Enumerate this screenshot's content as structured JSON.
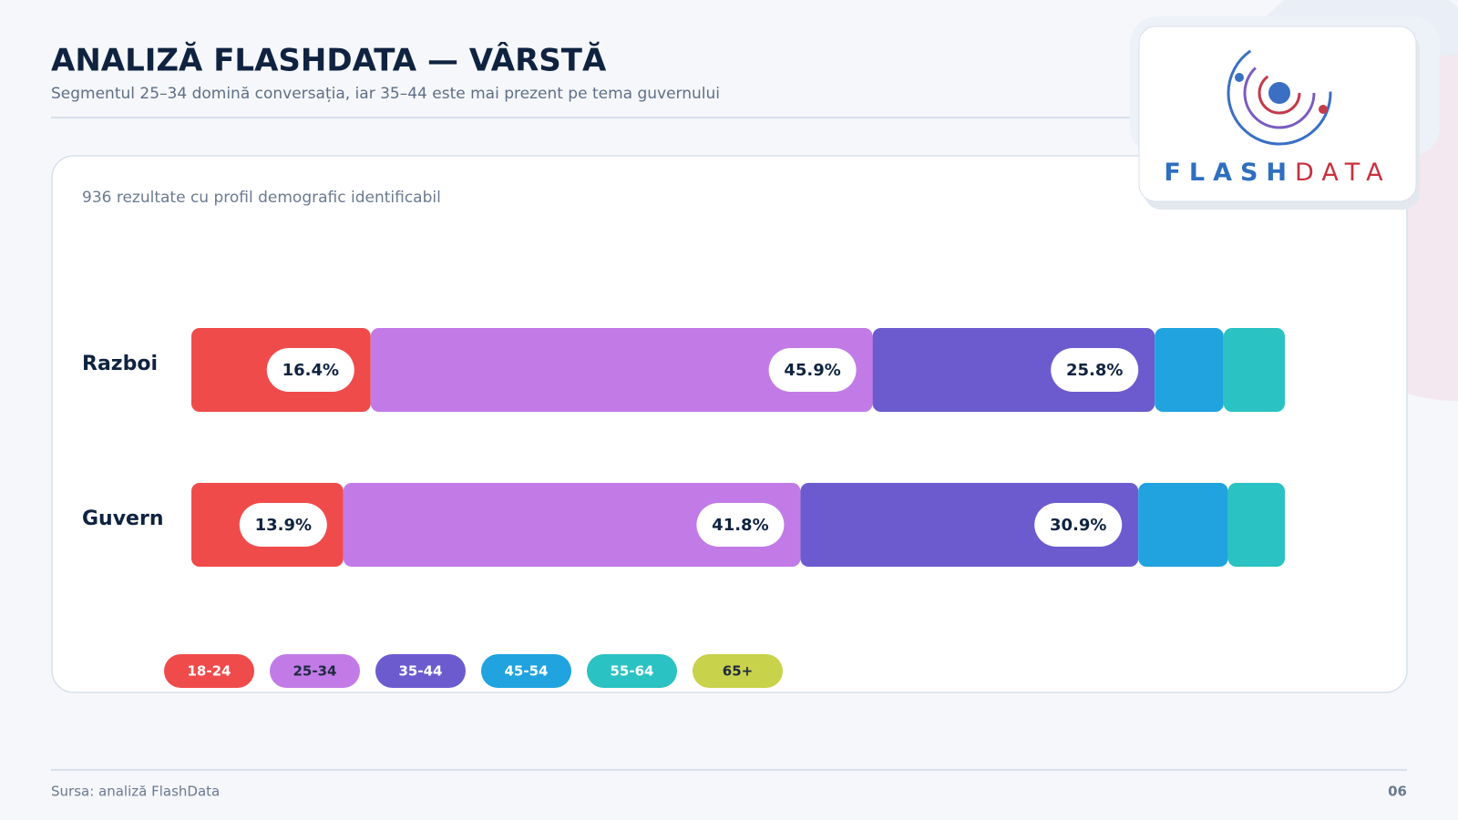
{
  "header": {
    "title": "ANALIZĂ FLASHDATA — VÂRSTĂ",
    "subtitle": "Segmentul 25–34 domină conversația, iar 35–44 este mai prezent pe tema guvernului"
  },
  "logo": {
    "part_a": "FLASH",
    "part_b": "DATA"
  },
  "footer": {
    "source": "Sursa: analiză FlashData",
    "page": "06"
  },
  "chart_data": {
    "type": "stacked-bar-horizontal",
    "subtitle": "936 rezultate cu profil demografic identificabil",
    "categories": [
      "Razboi",
      "Guvern"
    ],
    "xlim": [
      0,
      100
    ],
    "series": [
      {
        "name": "18-24",
        "color": "#f04b4b",
        "values": [
          16.4,
          13.9
        ],
        "value_labels": [
          "16.4%",
          "13.9%"
        ]
      },
      {
        "name": "25-34",
        "color": "#c27be6",
        "values": [
          45.9,
          41.8
        ],
        "value_labels": [
          "45.9%",
          "41.8%"
        ]
      },
      {
        "name": "35-44",
        "color": "#6c5bcf",
        "values": [
          25.8,
          30.9
        ],
        "value_labels": [
          "25.8%",
          "30.9%"
        ]
      },
      {
        "name": "45-54",
        "color": "#20a3df",
        "values": [
          6.3,
          8.2
        ]
      },
      {
        "name": "55-64",
        "color": "#2ac2c2",
        "values": [
          5.6,
          5.2
        ]
      },
      {
        "name": "65+",
        "color": "#c8d24a",
        "values": [
          0,
          0
        ]
      }
    ]
  }
}
